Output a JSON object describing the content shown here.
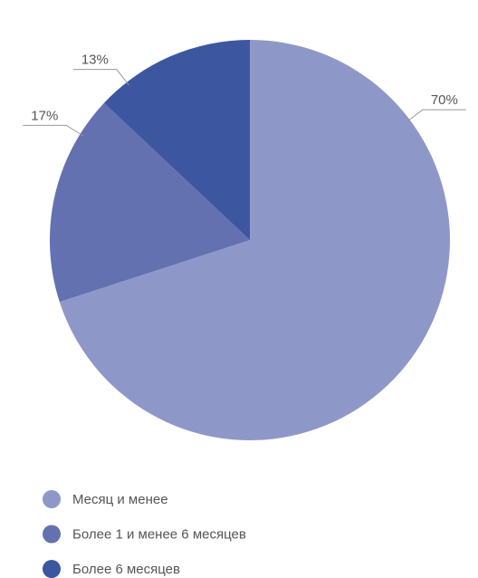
{
  "chart_data": {
    "type": "pie",
    "categories": [
      "Месяц и менее",
      "Более 1 и менее 6 месяцев",
      "Более 6 месяцев"
    ],
    "values": [
      70,
      17,
      13
    ],
    "value_labels": [
      "70%",
      "17%",
      "13%"
    ],
    "colors": [
      "#8e98c8",
      "#6471b0",
      "#3c57a0"
    ],
    "legend": "bottom"
  }
}
